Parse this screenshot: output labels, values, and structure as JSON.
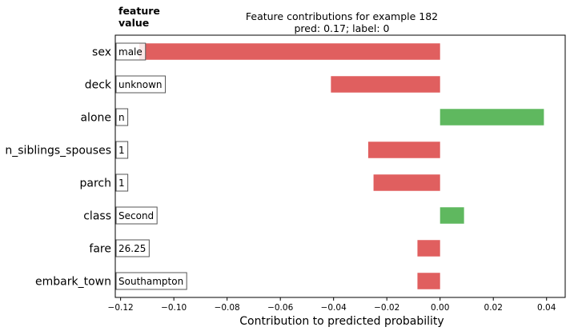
{
  "chart_data": {
    "type": "bar",
    "orientation": "horizontal",
    "title_line1": "Feature contributions for example 182",
    "title_line2": "pred: 0.17; label: 0",
    "header_line1": "feature",
    "header_line2": "value",
    "xlabel": "Contribution to predicted probability",
    "ylabel": "",
    "xlim": [
      -0.122,
      0.047
    ],
    "xticks": [
      -0.12,
      -0.1,
      -0.08,
      -0.06,
      -0.04,
      -0.02,
      0.0,
      0.02,
      0.04
    ],
    "xtick_labels": [
      "−0.12",
      "−0.10",
      "−0.08",
      "−0.06",
      "−0.04",
      "−0.02",
      "0.00",
      "0.02",
      "0.04"
    ],
    "grid": false,
    "legend": "none",
    "positive_color": "#5fb85f",
    "negative_color": "#e05f5f",
    "categories": [
      "sex",
      "deck",
      "alone",
      "n_siblings_spouses",
      "parch",
      "class",
      "fare",
      "embark_town"
    ],
    "feature_values": [
      "male",
      "unknown",
      "n",
      "1",
      "1",
      "Second",
      "26.25",
      "Southampton"
    ],
    "values": [
      -0.113,
      -0.041,
      0.039,
      -0.027,
      -0.025,
      0.009,
      -0.0085,
      -0.0085
    ]
  }
}
